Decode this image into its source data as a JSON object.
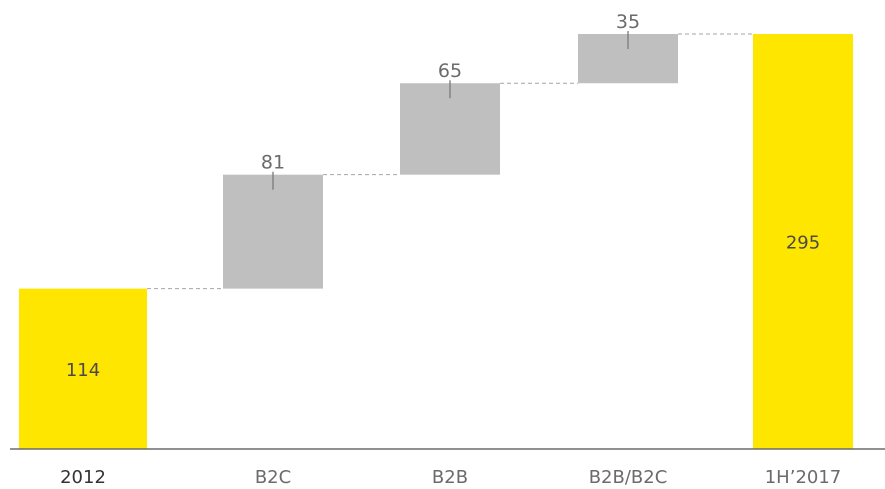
{
  "chart_data": {
    "type": "bar",
    "subtype": "waterfall",
    "title": "",
    "xlabel": "",
    "ylabel": "",
    "ylim": [
      0,
      320
    ],
    "grid": false,
    "legend": "none",
    "categories": [
      "2012",
      "B2C",
      "B2B",
      "B2B/B2C",
      "1H'2017"
    ],
    "categories_display": [
      "2012",
      "B2C",
      "B2B",
      "B2B/B2C",
      "1H’2017"
    ],
    "values": [
      114,
      81,
      65,
      35,
      295
    ],
    "bar_kind": [
      "total",
      "increment",
      "increment",
      "increment",
      "total"
    ],
    "labels": [
      "114",
      "81",
      "65",
      "35",
      "295"
    ],
    "colors": {
      "total": "#FFE600",
      "increment": "#BFBFBF",
      "connector": "#A6A6A6",
      "axis": "#6B6B6B"
    }
  }
}
